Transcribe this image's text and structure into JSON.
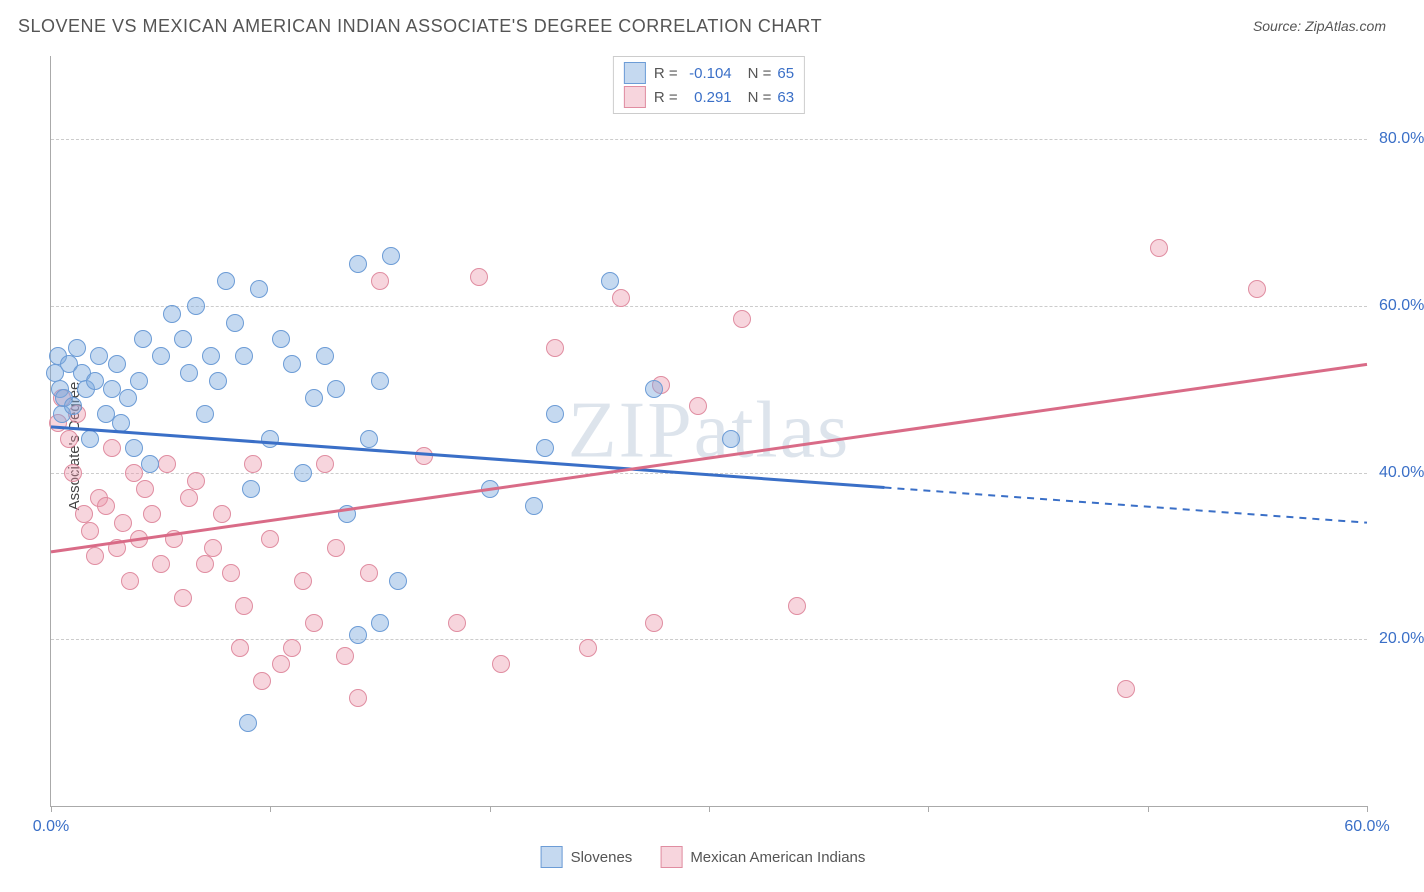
{
  "title": "SLOVENE VS MEXICAN AMERICAN INDIAN ASSOCIATE'S DEGREE CORRELATION CHART",
  "source_label": "Source: ZipAtlas.com",
  "y_axis_label": "Associate's Degree",
  "watermark_text": "ZIPatlas",
  "plot": {
    "x_min": 0,
    "x_max": 60,
    "y_min": 0,
    "y_max": 90,
    "x_ticks": [
      0,
      10,
      20,
      30,
      40,
      50,
      60
    ],
    "x_tick_labels": {
      "0": "0.0%",
      "60": "60.0%"
    },
    "y_grid": [
      20,
      40,
      60,
      80
    ],
    "y_tick_labels": {
      "20": "20.0%",
      "40": "40.0%",
      "60": "60.0%",
      "80": "80.0%"
    },
    "background": "#ffffff",
    "grid_color": "#cccccc",
    "axis_color": "#aaaaaa"
  },
  "series": {
    "slovenes": {
      "label": "Slovenes",
      "fill": "rgba(126,171,222,0.45)",
      "stroke": "#6c9cd6",
      "r_value": "-0.104",
      "n_value": "65",
      "regression": {
        "x1": 0,
        "y1": 45.5,
        "x2": 60,
        "y2": 34.0,
        "solid_until_x": 38
      },
      "points": [
        [
          0.2,
          52
        ],
        [
          0.3,
          54
        ],
        [
          0.4,
          50
        ],
        [
          0.5,
          47
        ],
        [
          0.6,
          49
        ],
        [
          0.8,
          53
        ],
        [
          1.0,
          48
        ],
        [
          1.2,
          55
        ],
        [
          1.4,
          52
        ],
        [
          1.6,
          50
        ],
        [
          1.8,
          44
        ],
        [
          2.0,
          51
        ],
        [
          2.2,
          54
        ],
        [
          2.5,
          47
        ],
        [
          2.8,
          50
        ],
        [
          3.0,
          53
        ],
        [
          3.2,
          46
        ],
        [
          3.5,
          49
        ],
        [
          3.8,
          43
        ],
        [
          4.0,
          51
        ],
        [
          4.2,
          56
        ],
        [
          4.5,
          41
        ],
        [
          5.0,
          54
        ],
        [
          5.5,
          59
        ],
        [
          6.0,
          56
        ],
        [
          6.3,
          52
        ],
        [
          6.6,
          60
        ],
        [
          7.0,
          47
        ],
        [
          7.3,
          54
        ],
        [
          7.6,
          51
        ],
        [
          8.0,
          63
        ],
        [
          8.4,
          58
        ],
        [
          8.8,
          54
        ],
        [
          9.1,
          38
        ],
        [
          9.5,
          62
        ],
        [
          10.0,
          44
        ],
        [
          10.5,
          56
        ],
        [
          11.0,
          53
        ],
        [
          11.5,
          40
        ],
        [
          12.0,
          49
        ],
        [
          12.5,
          54
        ],
        [
          13.0,
          50
        ],
        [
          14.0,
          65
        ],
        [
          14.5,
          44
        ],
        [
          15.0,
          51
        ],
        [
          15.5,
          66
        ],
        [
          15.8,
          27
        ],
        [
          14.0,
          20.5
        ],
        [
          9.0,
          10
        ],
        [
          13.5,
          35
        ],
        [
          15.0,
          22
        ],
        [
          20.0,
          38
        ],
        [
          22.0,
          36
        ],
        [
          22.5,
          43
        ],
        [
          23.0,
          47
        ],
        [
          25.5,
          63
        ],
        [
          27.5,
          50
        ],
        [
          31.0,
          44
        ]
      ]
    },
    "mexican": {
      "label": "Mexican American Indians",
      "fill": "rgba(235,150,170,0.40)",
      "stroke": "#e08da1",
      "r_value": "0.291",
      "n_value": "63",
      "regression": {
        "x1": 0,
        "y1": 30.5,
        "x2": 60,
        "y2": 53.0,
        "solid_until_x": 60
      },
      "points": [
        [
          0.3,
          46
        ],
        [
          0.5,
          49
        ],
        [
          0.8,
          44
        ],
        [
          1.0,
          40
        ],
        [
          1.2,
          47
        ],
        [
          1.5,
          35
        ],
        [
          1.8,
          33
        ],
        [
          2.0,
          30
        ],
        [
          2.2,
          37
        ],
        [
          2.5,
          36
        ],
        [
          2.8,
          43
        ],
        [
          3.0,
          31
        ],
        [
          3.3,
          34
        ],
        [
          3.6,
          27
        ],
        [
          3.8,
          40
        ],
        [
          4.0,
          32
        ],
        [
          4.3,
          38
        ],
        [
          4.6,
          35
        ],
        [
          5.0,
          29
        ],
        [
          5.3,
          41
        ],
        [
          5.6,
          32
        ],
        [
          6.0,
          25
        ],
        [
          6.3,
          37
        ],
        [
          6.6,
          39
        ],
        [
          7.0,
          29
        ],
        [
          7.4,
          31
        ],
        [
          7.8,
          35
        ],
        [
          8.2,
          28
        ],
        [
          8.6,
          19
        ],
        [
          8.8,
          24
        ],
        [
          9.2,
          41
        ],
        [
          9.6,
          15
        ],
        [
          10.0,
          32
        ],
        [
          10.5,
          17
        ],
        [
          11.0,
          19
        ],
        [
          11.5,
          27
        ],
        [
          12.0,
          22
        ],
        [
          12.5,
          41
        ],
        [
          13.0,
          31
        ],
        [
          13.4,
          18
        ],
        [
          14.0,
          13
        ],
        [
          14.5,
          28
        ],
        [
          15.0,
          63
        ],
        [
          17.0,
          42
        ],
        [
          18.5,
          22
        ],
        [
          19.5,
          63.5
        ],
        [
          20.5,
          17
        ],
        [
          23.0,
          55
        ],
        [
          24.5,
          19
        ],
        [
          26.0,
          61
        ],
        [
          27.5,
          22
        ],
        [
          27.8,
          50.5
        ],
        [
          29.5,
          48
        ],
        [
          31.5,
          58.5
        ],
        [
          34.0,
          24
        ],
        [
          49.0,
          14
        ],
        [
          50.5,
          67
        ],
        [
          55.0,
          62
        ]
      ]
    }
  },
  "stats_box": {
    "r_label": "R =",
    "n_label": "N ="
  }
}
